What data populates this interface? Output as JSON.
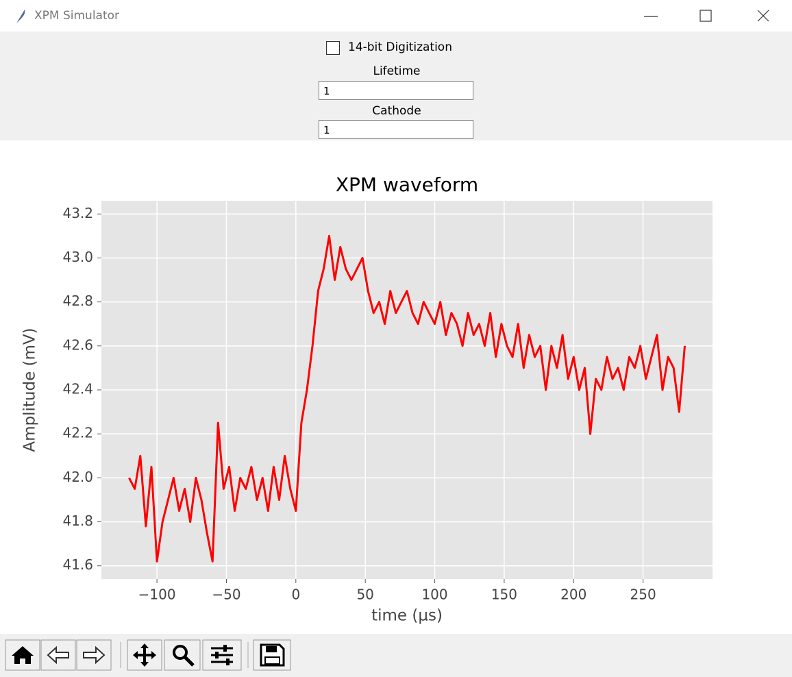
{
  "window": {
    "title": "XPM Simulator"
  },
  "controls": {
    "checkbox_label": "14-bit Digitization",
    "lifetime_label": "Lifetime",
    "lifetime_value": "1",
    "cathode_label": "Cathode",
    "cathode_value": "1"
  },
  "chart_data": {
    "type": "line",
    "title": "XPM waveform",
    "x_label": "time (µs)",
    "y_label": "Amplitude (mV)",
    "x": [
      -120,
      -116,
      -112,
      -108,
      -104,
      -100,
      -96,
      -92,
      -88,
      -84,
      -80,
      -76,
      -72,
      -68,
      -64,
      -60,
      -56,
      -52,
      -48,
      -44,
      -40,
      -36,
      -32,
      -28,
      -24,
      -20,
      -16,
      -12,
      -8,
      -4,
      0,
      4,
      8,
      12,
      16,
      20,
      24,
      28,
      32,
      36,
      40,
      44,
      48,
      52,
      56,
      60,
      64,
      68,
      72,
      76,
      80,
      84,
      88,
      92,
      96,
      100,
      104,
      108,
      112,
      116,
      120,
      124,
      128,
      132,
      136,
      140,
      144,
      148,
      152,
      156,
      160,
      164,
      168,
      172,
      176,
      180,
      184,
      188,
      192,
      196,
      200,
      204,
      208,
      212,
      216,
      220,
      224,
      228,
      232,
      236,
      240,
      244,
      248,
      252,
      256,
      260,
      264,
      268,
      272,
      276,
      280
    ],
    "values": [
      42.0,
      41.95,
      42.1,
      41.78,
      42.05,
      41.62,
      41.8,
      41.9,
      42.0,
      41.85,
      41.95,
      41.8,
      42.0,
      41.9,
      41.75,
      41.62,
      42.25,
      41.95,
      42.05,
      41.85,
      42.0,
      41.95,
      42.05,
      41.9,
      42.0,
      41.85,
      42.05,
      41.9,
      42.1,
      41.95,
      41.85,
      42.25,
      42.4,
      42.6,
      42.85,
      42.95,
      43.1,
      42.9,
      43.05,
      42.95,
      42.9,
      42.95,
      43.0,
      42.85,
      42.75,
      42.8,
      42.7,
      42.85,
      42.75,
      42.8,
      42.85,
      42.75,
      42.7,
      42.8,
      42.75,
      42.7,
      42.8,
      42.65,
      42.75,
      42.7,
      42.6,
      42.75,
      42.65,
      42.7,
      42.6,
      42.75,
      42.55,
      42.7,
      42.6,
      42.55,
      42.7,
      42.5,
      42.65,
      42.55,
      42.6,
      42.4,
      42.6,
      42.5,
      42.65,
      42.45,
      42.55,
      42.4,
      42.5,
      42.2,
      42.45,
      42.4,
      42.55,
      42.45,
      42.5,
      42.4,
      42.55,
      42.5,
      42.6,
      42.45,
      42.55,
      42.65,
      42.4,
      42.55,
      42.5,
      42.3,
      42.6
    ],
    "color": "#ff0000",
    "xlim": [
      -140,
      300
    ],
    "xticks": [
      {
        "value": -100,
        "label": "−100"
      },
      {
        "value": -50,
        "label": "−50"
      },
      0,
      50,
      100,
      150,
      200,
      250
    ],
    "ylim": [
      41.54,
      43.26
    ],
    "yticks": [
      41.6,
      41.8,
      {
        "value": 42.0,
        "label": "42.0"
      },
      42.2,
      42.4,
      42.6,
      42.8,
      {
        "value": 43.0,
        "label": "43.0"
      },
      43.2
    ],
    "grid": true
  }
}
